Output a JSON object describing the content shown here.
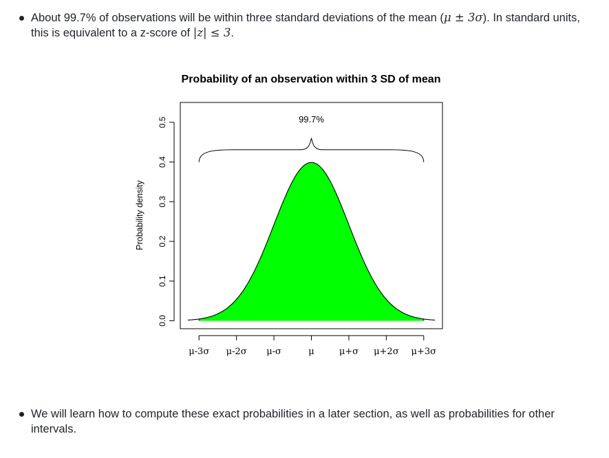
{
  "bullets": [
    {
      "pre": "About 99.7% of observations will be within three standard deviations of the mean (",
      "math1": "μ ± 3σ",
      "mid": "). In standard units, this is equivalent to a z-score of ",
      "math2": "|z| ≤ 3",
      "post": "."
    },
    {
      "text": "We will learn how to compute these exact probabilities in a later section, as well as probabilities for other intervals."
    }
  ],
  "chart_data": {
    "type": "area",
    "title": "Probability of an observation within 3 SD of mean",
    "xlabel": "",
    "ylabel": "Probability density",
    "x_tick_labels": [
      "μ-3σ",
      "μ-2σ",
      "μ-σ",
      "μ",
      "μ+σ",
      "μ+2σ",
      "μ+3σ"
    ],
    "x_ticks": [
      -3,
      -2,
      -1,
      0,
      1,
      2,
      3
    ],
    "y_ticks": [
      0.0,
      0.1,
      0.2,
      0.3,
      0.4,
      0.5
    ],
    "y_tick_labels": [
      "0.0",
      "0.1",
      "0.2",
      "0.3",
      "0.4",
      "0.5"
    ],
    "xlim": [
      -3.5,
      3.5
    ],
    "ylim": [
      -0.02,
      0.55
    ],
    "curve": "standard normal density",
    "shaded_interval": [
      -3,
      3
    ],
    "shade_color": "#00ff00",
    "annotation": {
      "text": "99.7%",
      "brace_from": -3,
      "brace_to": 3,
      "brace_y": 0.41,
      "text_y": 0.5
    },
    "grid": false,
    "legend": "none"
  }
}
